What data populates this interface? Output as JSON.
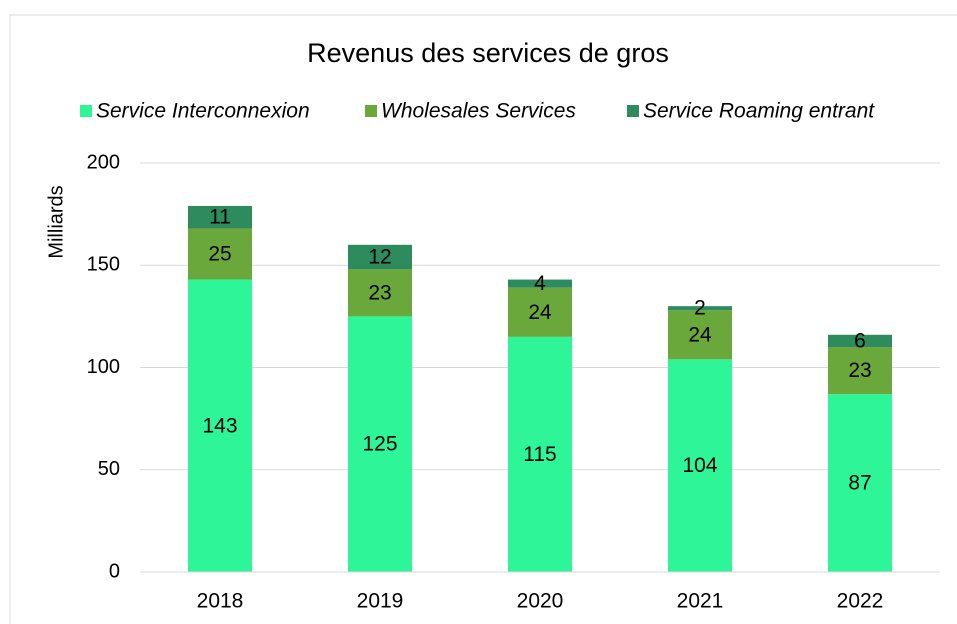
{
  "chart_data": {
    "type": "stacked_bar",
    "title": "Revenus des services de gros",
    "y_label": "Milliards",
    "categories": [
      "2018",
      "2019",
      "2020",
      "2021",
      "2022"
    ],
    "series": [
      {
        "name": "Service Interconnexion",
        "color": "#2ef598",
        "values": [
          143,
          125,
          115,
          104,
          87
        ]
      },
      {
        "name": "Wholesales Services",
        "color": "#6aa83c",
        "values": [
          25,
          23,
          24,
          24,
          23
        ]
      },
      {
        "name": "Service Roaming entrant",
        "color": "#2e8b5e",
        "values": [
          11,
          12,
          4,
          2,
          6
        ]
      }
    ],
    "ylim": [
      0,
      200
    ],
    "yticks": [
      0,
      50,
      100,
      150,
      200
    ],
    "grid": true,
    "legend": "top"
  }
}
